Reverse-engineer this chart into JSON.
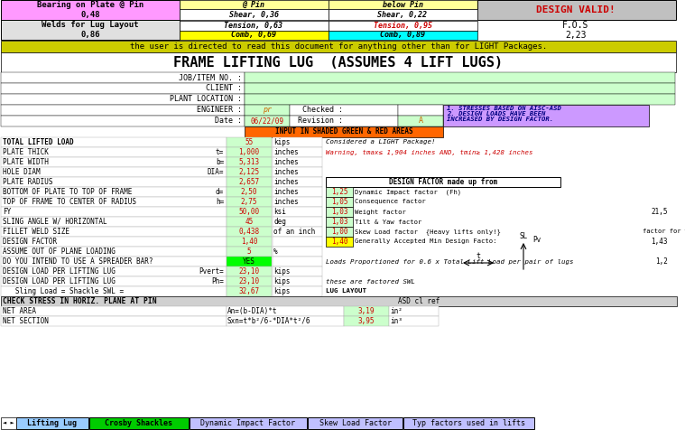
{
  "title": "FRAME LIFTING LUG  (ASSUMES 4 LIFT LUGS)",
  "warning_bar": "the user is directed to read this document for anything other than for LIGHT Packages.",
  "tab_labels": [
    "Lifting Lug",
    "Crosby Shackles",
    "Dynamic Impact Factor",
    "Skew Load Factor",
    "Typ factors used in lifts"
  ],
  "tab_active": 0,
  "header_rows": [
    {
      "col1_text": "Bearing on Plate @ Pin\n0,48",
      "col1_bg": "#FF99FF",
      "col2_text": "@ Pin\nShear, 0,36\nTension, 0,63\nComb, 0,69",
      "col2_bg_top": "#FFFF99",
      "col2_bg_bot": "#FFFF00",
      "col3_text": "below Pin\nShear, 0,22\nTension, 0,95\nComb, 0,89",
      "col3_bg_top": "#FFFF99",
      "col3_tension_red": true,
      "col3_bg_bot": "#00FFFF",
      "col4_text": "DESIGN VALID!\nF.O.S\n2,23",
      "col4_bg": "#C0C0C0",
      "col4_red": true
    }
  ],
  "info_rows": [
    {
      "label": "JOB/ITEM NO. :",
      "value": "",
      "label_bg": "#FFFFFF",
      "val_bg": "#CCFFCC"
    },
    {
      "label": "CLIENT :",
      "value": "",
      "label_bg": "#FFFFFF",
      "val_bg": "#CCFFCC"
    },
    {
      "label": "PLANT LOCATION :",
      "value": "",
      "label_bg": "#FFFFFF",
      "val_bg": "#CCFFCC"
    }
  ],
  "engineer_row": {
    "label": "ENGINEER :",
    "value": "pr",
    "value2": "Checked :",
    "value3": "",
    "label_bg": "#FFFFFF"
  },
  "date_row": {
    "label": "Date :",
    "value": "06/22/09",
    "value2": "Revision :",
    "value3": "A"
  },
  "input_note": "INPUT IN SHADED GREEN & RED AREAS",
  "aisc_note": "1. STRESSES BASED ON AISC-ASD\n2. DESIGN LOADS HAVE BEEN\nINCREASED BY DESIGN FACTOR.",
  "data_rows": [
    {
      "label": "TOTAL LIFTED LOAD",
      "eq": "",
      "value": "55",
      "unit": "kips",
      "note": "Considered a LIGHT Package!",
      "note_italic": true,
      "underline": true
    },
    {
      "label": "PLATE THICK",
      "eq": "t=",
      "value": "1,000",
      "unit": "inches",
      "note": "Warning, tmax≤ 1,904 inches AND, tmin≥ 1,428 inches",
      "note_red": true,
      "note_italic": true
    },
    {
      "label": "PLATE WIDTH",
      "eq": "b=",
      "value": "5,313",
      "unit": "inches",
      "note": ""
    },
    {
      "label": "HOLE DIAM",
      "eq": "DIA=",
      "value": "2,125",
      "unit": "inches",
      "note": ""
    },
    {
      "label": "PLATE RADIUS",
      "eq": "",
      "value": "2,657",
      "unit": "inches",
      "note": "DESIGN FACTOR made up from",
      "note_box": true
    },
    {
      "label": "BOTTOM OF PLATE TO TOP OF FRAME",
      "eq": "d=",
      "value": "2,50",
      "unit": "inches",
      "note": "1,25",
      "note2": "Dynamic Impact factor  (Fh)",
      "factor_green": true
    },
    {
      "label": "TOP OF FRAME TO CENTER OF RADIUS",
      "eq": "h=",
      "value": "2,75",
      "unit": "inches",
      "note": "1,05",
      "note2": "Consequence factor",
      "factor_green": true
    },
    {
      "label": "FY",
      "eq": "",
      "value": "50,00",
      "unit": "ksi",
      "note": "1,03",
      "note2": "Weight factor",
      "factor_green": true,
      "extra": "21,5"
    },
    {
      "label": "SLING ANGLE W/ HORIZONTAL",
      "eq": "",
      "value": "45",
      "unit": "deg",
      "note": "1,03",
      "note2": "Tilt & Yaw factor",
      "factor_green": true
    },
    {
      "label": "FILLET WELD SIZE",
      "eq": "",
      "value": "0,438",
      "unit": "of an inch",
      "note": "1,00",
      "note2": "Skew Load factor  {Heavy lifts only!}",
      "factor_green": true,
      "extra2": "factor for welds"
    },
    {
      "label": "DESIGN FACTOR",
      "eq": "",
      "value": "1,40",
      "unit": "",
      "note": "1,40",
      "note2": "Generally Accepted Min Design Facto:",
      "factor_yellow": true,
      "extra3": "1,43"
    },
    {
      "label": "ASSUME OUT OF PLANE LOADING",
      "eq": "",
      "value": "5",
      "unit": "%",
      "note": ""
    },
    {
      "label": "DO YOU INTEND TO USE A SPREADER BAR?",
      "eq": "",
      "value": "YES",
      "unit": "",
      "note": "Loads Proportioned for 0.6 x Total Lift Load per pair of lugs",
      "note_italic": true,
      "val_green": true,
      "extra4": "1,2"
    },
    {
      "label": "DESIGN LOAD PER LIFTING LUG",
      "eq": "Pvert=",
      "value": "23,10",
      "unit": "kips",
      "note": ""
    },
    {
      "label": "DESIGN LOAD PER LIFTING LUG",
      "eq": "Ph=",
      "value": "23,10",
      "unit": "kips",
      "note": "these are factored SWL",
      "note_italic": true
    },
    {
      "label": "   Sling Load = Shackle SWL =",
      "eq": "",
      "value": "32,67",
      "unit": "kips",
      "note": "LUG LAYOUT",
      "note_bold": true
    }
  ],
  "check_rows": [
    {
      "label": "CHECK STRESS IN HORIZ. PLANE AT PIN",
      "eq": "",
      "value": "",
      "unit": "",
      "note": "ASD cl ref",
      "header": true
    },
    {
      "label": "NET AREA",
      "eq": "An=(b-DIA)*t",
      "value": "3,19",
      "unit": "in²",
      "note": ""
    },
    {
      "label": "NET SECTION",
      "eq": "Sxn=t*b²/6-*DIA*t²/6",
      "value": "3,95",
      "unit": "in³",
      "note": ""
    }
  ],
  "bg_colors": {
    "header_label": "#E0E0E0",
    "warning_bar": "#CCCC00",
    "main_bg": "#FFFFFF",
    "green_input": "#CCFFCC",
    "yellow_input": "#FFFF00",
    "purple_note": "#CC99FF",
    "factor_green": "#CCFFCC",
    "factor_yellow": "#FFFF00",
    "tab_active": "#99FF99",
    "tab_inactive_1": "#A0A0D0",
    "check_header": "#D0D0D0"
  }
}
